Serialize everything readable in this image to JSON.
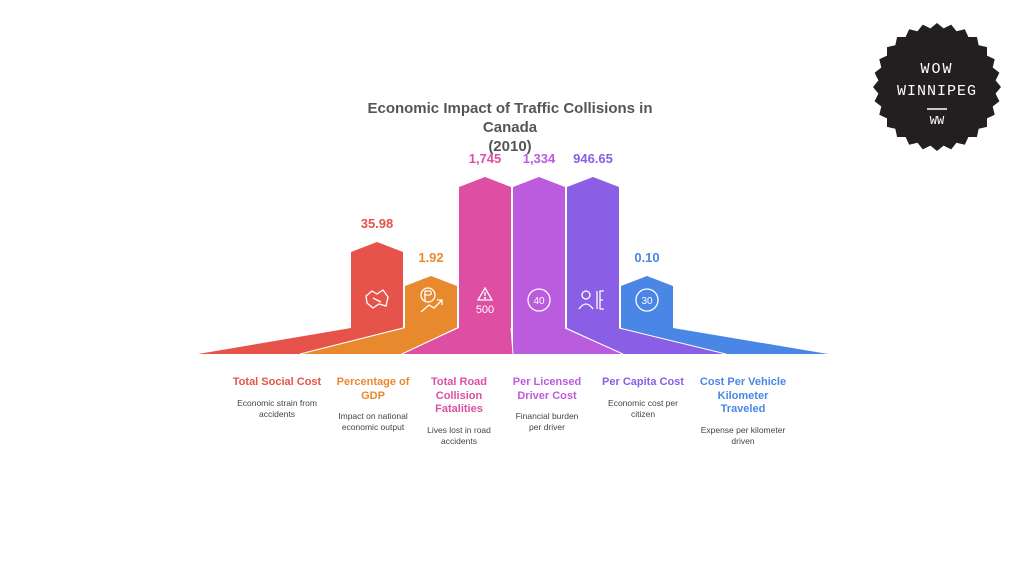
{
  "chart_data": {
    "type": "bar",
    "title": "Economic Impact of Traffic Collisions in Canada (2010)",
    "title_lines": [
      "Economic Impact of Traffic Collisions in Canada",
      "(2010)"
    ],
    "categories": [
      {
        "label": "Total Social Cost",
        "value_label": "35.98",
        "description": "Economic strain from accidents",
        "color": "#e5534b",
        "icon": "canada-map-icon"
      },
      {
        "label": "Percentage of GDP",
        "value_label": "1.92",
        "description": "Impact on national economic output",
        "color": "#e8892d",
        "icon": "currency-growth-icon"
      },
      {
        "label": "Total Road Collision Fatalities",
        "value_label": "1,745",
        "description": "Lives lost in road accidents",
        "color": "#de4fa4",
        "icon": "warning-icon",
        "icon_text": "500"
      },
      {
        "label": "Per Licensed Driver Cost",
        "value_label": "1,334",
        "description": "Financial burden per driver",
        "color": "#bb5bde",
        "icon": "speed-limit-icon",
        "icon_text": "40"
      },
      {
        "label": "Per Capita Cost",
        "value_label": "946.65",
        "description": "Economic cost per citizen",
        "color": "#8a5ee5",
        "icon": "citizen-icon"
      },
      {
        "label": "Cost Per Vehicle Kilometer Traveled",
        "value_label": "0.10",
        "description": "Expense per kilometer driven",
        "color": "#4a86e5",
        "icon": "speed-limit-icon",
        "icon_text": "30"
      }
    ],
    "grid": false,
    "legend": "none"
  },
  "logo": {
    "line1": "WOW",
    "line2": "WINNIPEG",
    "mark": "WW",
    "color": "#231f20"
  }
}
